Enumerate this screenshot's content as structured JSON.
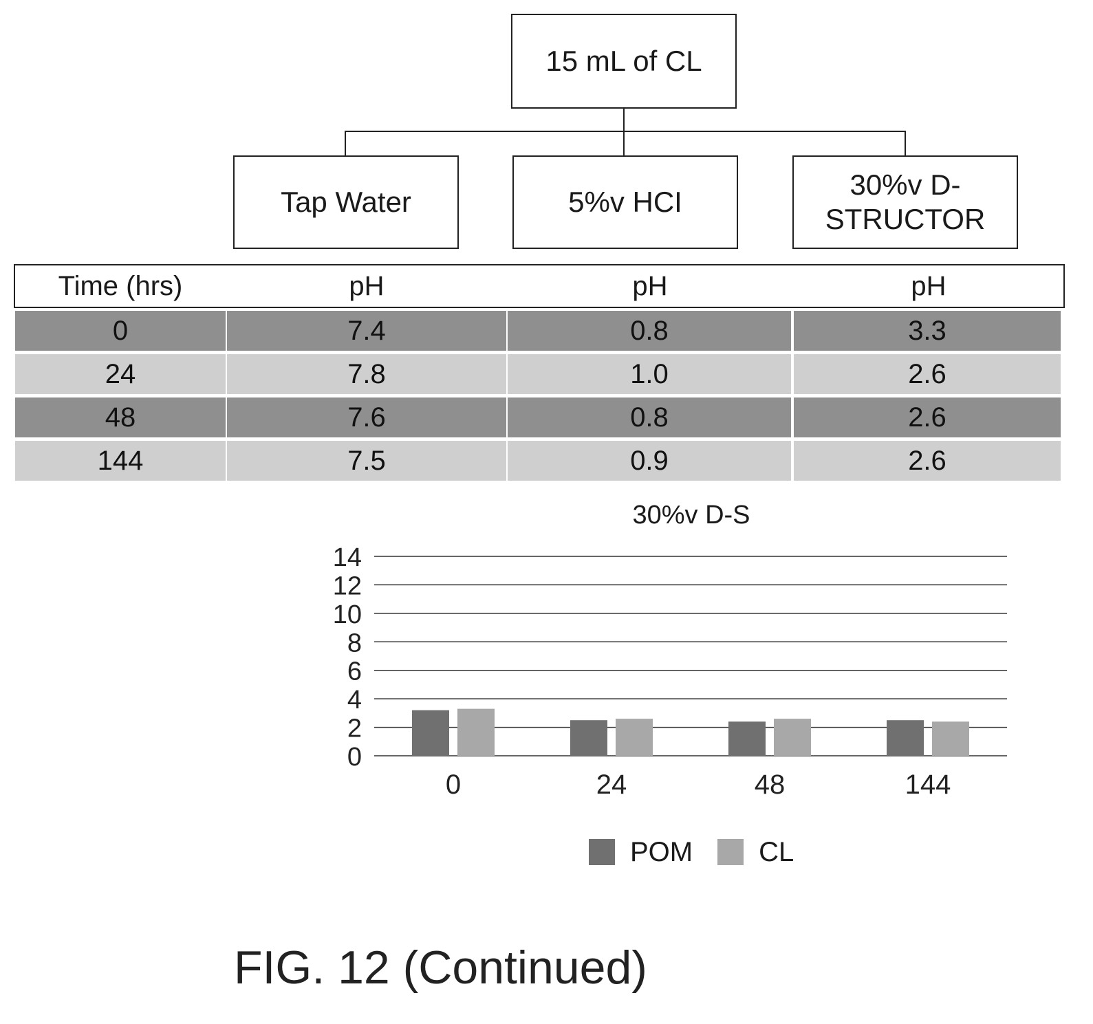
{
  "flowchart": {
    "root": "15 mL of CL",
    "branches": [
      "Tap Water",
      "5%v HCI",
      "30%v D-\nSTRUCTOR"
    ]
  },
  "table": {
    "headers": [
      "Time (hrs)",
      "pH",
      "pH",
      "pH"
    ],
    "rows": [
      [
        "0",
        "7.4",
        "0.8",
        "3.3"
      ],
      [
        "24",
        "7.8",
        "1.0",
        "2.6"
      ],
      [
        "48",
        "7.6",
        "0.8",
        "2.6"
      ],
      [
        "144",
        "7.5",
        "0.9",
        "2.6"
      ]
    ]
  },
  "chart_data": {
    "type": "bar",
    "title": "30%v D-S",
    "categories": [
      "0",
      "24",
      "48",
      "144"
    ],
    "series": [
      {
        "name": "POM",
        "values": [
          3.2,
          2.5,
          2.4,
          2.5
        ],
        "color": "#707070"
      },
      {
        "name": "CL",
        "values": [
          3.3,
          2.6,
          2.6,
          2.4
        ],
        "color": "#a8a8a8"
      }
    ],
    "ylim": [
      0,
      14
    ],
    "yticks": [
      "0",
      "2",
      "4",
      "6",
      "8",
      "10",
      "12",
      "14"
    ],
    "grid": true,
    "legend_position": "bottom"
  },
  "caption": "FIG. 12 (Continued)"
}
